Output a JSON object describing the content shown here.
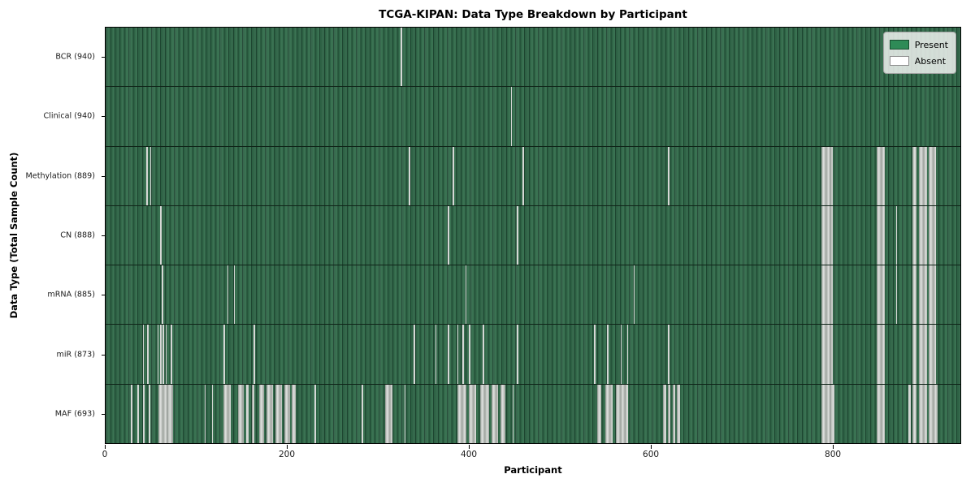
{
  "chart_data": {
    "type": "heatmap",
    "title": "TCGA-KIPAN: Data Type Breakdown by Participant",
    "xlabel": "Participant",
    "ylabel": "Data Type (Total Sample Count)",
    "x_ticks": [
      0,
      200,
      400,
      600,
      800
    ],
    "xlim": [
      0,
      941
    ],
    "total_participants": 941,
    "grid": false,
    "legend": {
      "position": "upper right",
      "entries": [
        {
          "label": "Present",
          "color": "#2e8b57"
        },
        {
          "label": "Absent",
          "color": "#ffffff"
        }
      ]
    },
    "rows": [
      {
        "label": "BCR (940)",
        "data_type": "BCR",
        "sample_count": 940,
        "absent_ranges": [
          [
            325,
            326
          ]
        ]
      },
      {
        "label": "Clinical (940)",
        "data_type": "Clinical",
        "sample_count": 940,
        "absent_ranges": [
          [
            446,
            447
          ]
        ]
      },
      {
        "label": "Methylation (889)",
        "data_type": "Methylation",
        "sample_count": 889,
        "absent_ranges": [
          [
            45,
            46
          ],
          [
            49,
            50
          ],
          [
            334,
            335
          ],
          [
            382,
            383
          ],
          [
            459,
            460
          ],
          [
            619,
            620
          ],
          [
            788,
            801
          ],
          [
            849,
            858
          ],
          [
            888,
            893
          ],
          [
            895,
            904
          ],
          [
            906,
            914
          ]
        ]
      },
      {
        "label": "CN (888)",
        "data_type": "CN",
        "sample_count": 888,
        "absent_ranges": [
          [
            60,
            61
          ],
          [
            377,
            378
          ],
          [
            453,
            454
          ],
          [
            788,
            801
          ],
          [
            849,
            858
          ],
          [
            870,
            871
          ],
          [
            888,
            893
          ],
          [
            895,
            904
          ],
          [
            906,
            914
          ]
        ]
      },
      {
        "label": "mRNA (885)",
        "data_type": "mRNA",
        "sample_count": 885,
        "absent_ranges": [
          [
            62,
            63
          ],
          [
            134,
            135
          ],
          [
            141,
            142
          ],
          [
            396,
            397
          ],
          [
            581,
            582
          ],
          [
            788,
            801
          ],
          [
            849,
            858
          ],
          [
            870,
            871
          ],
          [
            888,
            893
          ],
          [
            895,
            904
          ],
          [
            906,
            914
          ]
        ]
      },
      {
        "label": "miR (873)",
        "data_type": "miR",
        "sample_count": 873,
        "absent_ranges": [
          [
            41,
            42
          ],
          [
            46,
            47
          ],
          [
            57,
            58
          ],
          [
            60,
            61
          ],
          [
            63,
            64
          ],
          [
            66,
            67
          ],
          [
            72,
            73
          ],
          [
            130,
            131
          ],
          [
            163,
            164
          ],
          [
            339,
            340
          ],
          [
            363,
            364
          ],
          [
            377,
            378
          ],
          [
            387,
            388
          ],
          [
            393,
            394
          ],
          [
            400,
            401
          ],
          [
            415,
            416
          ],
          [
            453,
            454
          ],
          [
            538,
            539
          ],
          [
            552,
            553
          ],
          [
            567,
            568
          ],
          [
            574,
            575
          ],
          [
            619,
            620
          ],
          [
            788,
            801
          ],
          [
            849,
            858
          ],
          [
            888,
            893
          ],
          [
            895,
            904
          ],
          [
            906,
            914
          ]
        ]
      },
      {
        "label": "MAF (693)",
        "data_type": "MAF",
        "sample_count": 693,
        "absent_ranges": [
          [
            28,
            29
          ],
          [
            35,
            36
          ],
          [
            41,
            43
          ],
          [
            47,
            49
          ],
          [
            58,
            74
          ],
          [
            109,
            110
          ],
          [
            117,
            118
          ],
          [
            130,
            138
          ],
          [
            146,
            152
          ],
          [
            155,
            157
          ],
          [
            161,
            164
          ],
          [
            169,
            174
          ],
          [
            177,
            184
          ],
          [
            187,
            194
          ],
          [
            197,
            203
          ],
          [
            205,
            209
          ],
          [
            230,
            231
          ],
          [
            282,
            283
          ],
          [
            308,
            316
          ],
          [
            329,
            330
          ],
          [
            387,
            397
          ],
          [
            400,
            408
          ],
          [
            412,
            422
          ],
          [
            425,
            432
          ],
          [
            435,
            440
          ],
          [
            448,
            449
          ],
          [
            541,
            546
          ],
          [
            550,
            558
          ],
          [
            562,
            575
          ],
          [
            614,
            617
          ],
          [
            619,
            622
          ],
          [
            624,
            627
          ],
          [
            629,
            632
          ],
          [
            788,
            802
          ],
          [
            849,
            858
          ],
          [
            884,
            886
          ],
          [
            888,
            893
          ],
          [
            895,
            904
          ],
          [
            906,
            916
          ]
        ]
      }
    ]
  },
  "colors": {
    "present": "#2e8b57",
    "absent": "#ffffff",
    "plot_green_rendered": "#2d6144",
    "absent_gray_rendered": "#c2c6c2",
    "row_divider": "#0f2418"
  }
}
